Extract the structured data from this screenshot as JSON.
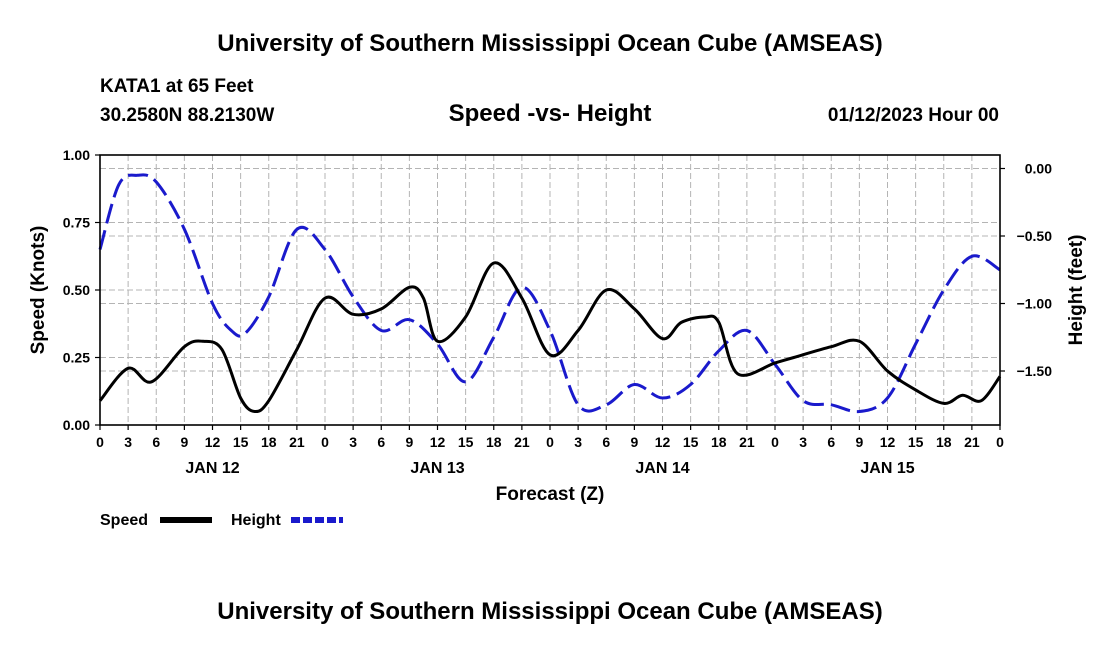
{
  "header": {
    "title": "University of Southern Mississippi Ocean Cube (AMSEAS)",
    "station": "KATA1 at 65 Feet",
    "coords": "30.2580N  88.2130W",
    "chart_title": "Speed -vs- Height",
    "datetime": "01/12/2023 Hour 00"
  },
  "footer": {
    "title": "University of Southern Mississippi Ocean Cube (AMSEAS)"
  },
  "colors": {
    "speed": "#000000",
    "height": "#1a1acc",
    "grid": "#b4b4b4"
  },
  "chart_data": {
    "type": "line",
    "title": "Speed -vs- Height",
    "xlabel": "Forecast (Z)",
    "ylabel": "Speed (Knots)",
    "y2label": "Height (feet)",
    "x_range": [
      0,
      96
    ],
    "ylim": [
      0,
      1
    ],
    "y2lim": [
      -1.9,
      0.1
    ],
    "yticks": [
      0,
      0.25,
      0.5,
      0.75,
      1
    ],
    "yticklabels": [
      "0.00",
      "0.25",
      "0.50",
      "0.75",
      "1.00"
    ],
    "y2ticks": [
      0,
      -0.5,
      -1,
      -1.5
    ],
    "y2ticklabels": [
      "0.00",
      "−0.50",
      "−1.00",
      "−1.50"
    ],
    "xtick_hours": [
      0,
      3,
      6,
      9,
      12,
      15,
      18,
      21,
      24,
      27,
      30,
      33,
      36,
      39,
      42,
      45,
      48,
      51,
      54,
      57,
      60,
      63,
      66,
      69,
      72,
      75,
      78,
      81,
      84,
      87,
      90,
      93,
      96
    ],
    "xticklabels": [
      "0",
      "3",
      "6",
      "9",
      "12",
      "15",
      "18",
      "21",
      "0",
      "3",
      "6",
      "9",
      "12",
      "15",
      "18",
      "21",
      "0",
      "3",
      "6",
      "9",
      "12",
      "15",
      "18",
      "21",
      "0",
      "3",
      "6",
      "9",
      "12",
      "15",
      "18",
      "21",
      "0"
    ],
    "day_labels": [
      {
        "label": "JAN 12",
        "hour": 12
      },
      {
        "label": "JAN 13",
        "hour": 36
      },
      {
        "label": "JAN 14",
        "hour": 60
      },
      {
        "label": "JAN 15",
        "hour": 84
      }
    ],
    "grid": true,
    "legend": [
      {
        "name": "Speed",
        "style": "solid"
      },
      {
        "name": "Height",
        "style": "dashed"
      }
    ],
    "series": [
      {
        "name": "Speed",
        "axis": "left",
        "style": "solid",
        "x": [
          0,
          3,
          5.5,
          9,
          11,
          13,
          15,
          16.5,
          18,
          21,
          24,
          27,
          30,
          33,
          34.5,
          36,
          39,
          42,
          45,
          48,
          51,
          54,
          57,
          60,
          62,
          64.5,
          66,
          68,
          72,
          74,
          78,
          81,
          84,
          87,
          90,
          92,
          94,
          96
        ],
        "y": [
          0.09,
          0.21,
          0.16,
          0.29,
          0.31,
          0.28,
          0.1,
          0.05,
          0.09,
          0.28,
          0.47,
          0.41,
          0.43,
          0.51,
          0.47,
          0.31,
          0.4,
          0.6,
          0.47,
          0.26,
          0.35,
          0.5,
          0.43,
          0.32,
          0.38,
          0.4,
          0.38,
          0.19,
          0.23,
          0.25,
          0.29,
          0.31,
          0.2,
          0.13,
          0.08,
          0.11,
          0.09,
          0.18
        ]
      },
      {
        "name": "Height",
        "axis": "right",
        "style": "dashed",
        "x": [
          0,
          2,
          4,
          6,
          9,
          12,
          14,
          15.5,
          18,
          21,
          24,
          27,
          30,
          33,
          36,
          39,
          42,
          45,
          48,
          51,
          54,
          57,
          60,
          63,
          66,
          69,
          72,
          75,
          78,
          81,
          84,
          87,
          90,
          93,
          96
        ],
        "y": [
          -0.6,
          -0.12,
          -0.05,
          -0.1,
          -0.45,
          -1.0,
          -1.2,
          -1.22,
          -0.95,
          -0.45,
          -0.6,
          -0.95,
          -1.2,
          -1.12,
          -1.3,
          -1.58,
          -1.25,
          -0.88,
          -1.2,
          -1.75,
          -1.75,
          -1.6,
          -1.7,
          -1.6,
          -1.35,
          -1.2,
          -1.45,
          -1.72,
          -1.75,
          -1.8,
          -1.7,
          -1.3,
          -0.9,
          -0.65,
          -0.75
        ]
      }
    ]
  }
}
